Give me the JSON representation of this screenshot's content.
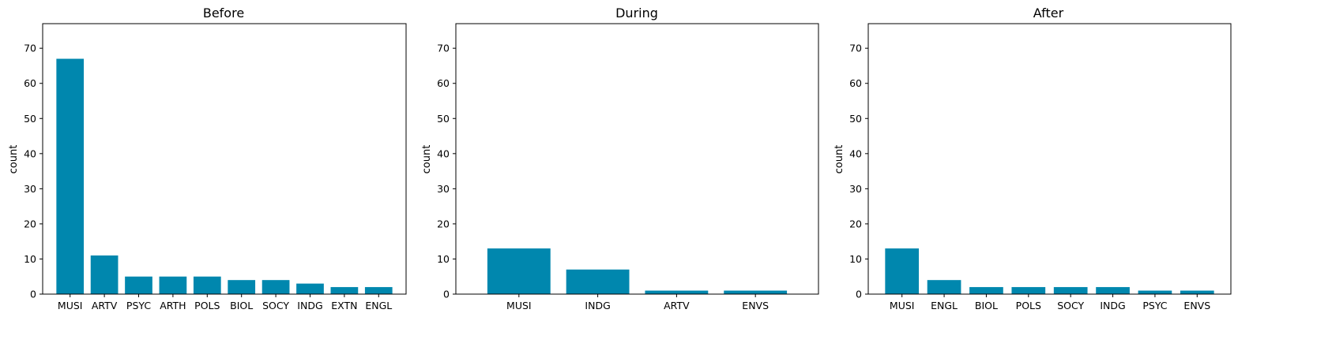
{
  "chart_data": [
    {
      "type": "bar",
      "title": "Before",
      "xlabel": "",
      "ylabel": "count",
      "ylim": [
        0,
        77
      ],
      "yticks": [
        0,
        10,
        20,
        30,
        40,
        50,
        60,
        70
      ],
      "categories": [
        "MUSI",
        "ARTV",
        "PSYC",
        "ARTH",
        "POLS",
        "BIOL",
        "SOCY",
        "INDG",
        "EXTN",
        "ENGL"
      ],
      "values": [
        67,
        11,
        5,
        5,
        5,
        4,
        4,
        3,
        2,
        2
      ]
    },
    {
      "type": "bar",
      "title": "During",
      "xlabel": "",
      "ylabel": "count",
      "ylim": [
        0,
        77
      ],
      "yticks": [
        0,
        10,
        20,
        30,
        40,
        50,
        60,
        70
      ],
      "categories": [
        "MUSI",
        "INDG",
        "ARTV",
        "ENVS"
      ],
      "values": [
        13,
        7,
        1,
        1
      ]
    },
    {
      "type": "bar",
      "title": "After",
      "xlabel": "",
      "ylabel": "count",
      "ylim": [
        0,
        77
      ],
      "yticks": [
        0,
        10,
        20,
        30,
        40,
        50,
        60,
        70
      ],
      "categories": [
        "MUSI",
        "ENGL",
        "BIOL",
        "POLS",
        "SOCY",
        "INDG",
        "PSYC",
        "ENVS"
      ],
      "values": [
        13,
        4,
        2,
        2,
        2,
        2,
        1,
        1
      ]
    }
  ],
  "colors": {
    "bar": "#0087ae"
  }
}
